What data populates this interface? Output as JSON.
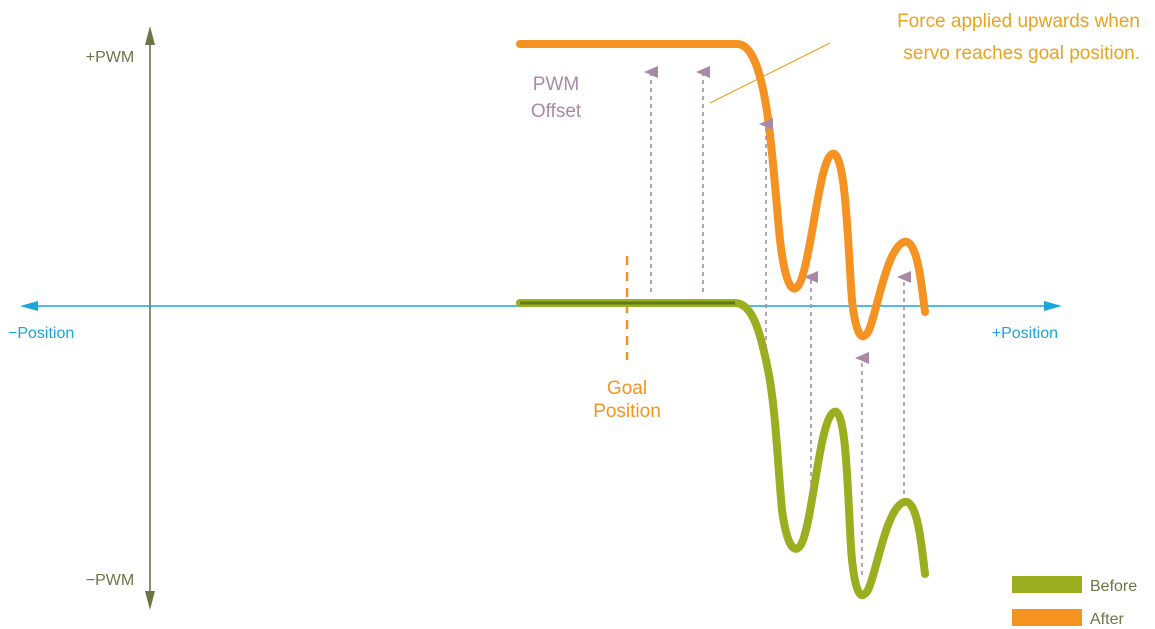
{
  "colors": {
    "vertical_axis": "#6b7546",
    "horizontal_axis": "#1aa6d9",
    "before": "#9aae1f",
    "after": "#f59322",
    "offset_arrows": "#a98aa6",
    "annotation": "#e6a41f",
    "goal": "#f59322"
  },
  "axes": {
    "y_top_label": "+PWM",
    "y_bottom_label": "−PWM",
    "x_left_label": "−Position",
    "x_right_label": "+Position"
  },
  "labels": {
    "pwm_offset_line1": "PWM",
    "pwm_offset_line2": "Offset",
    "goal_line1": "Goal",
    "goal_line2": "Position",
    "annotation_line1": "Force applied upwards when",
    "annotation_line2": "servo reaches goal position."
  },
  "legend": {
    "items": [
      {
        "label": "Before",
        "color": "#9aae1f"
      },
      {
        "label": "After",
        "color": "#f59322"
      }
    ]
  }
}
